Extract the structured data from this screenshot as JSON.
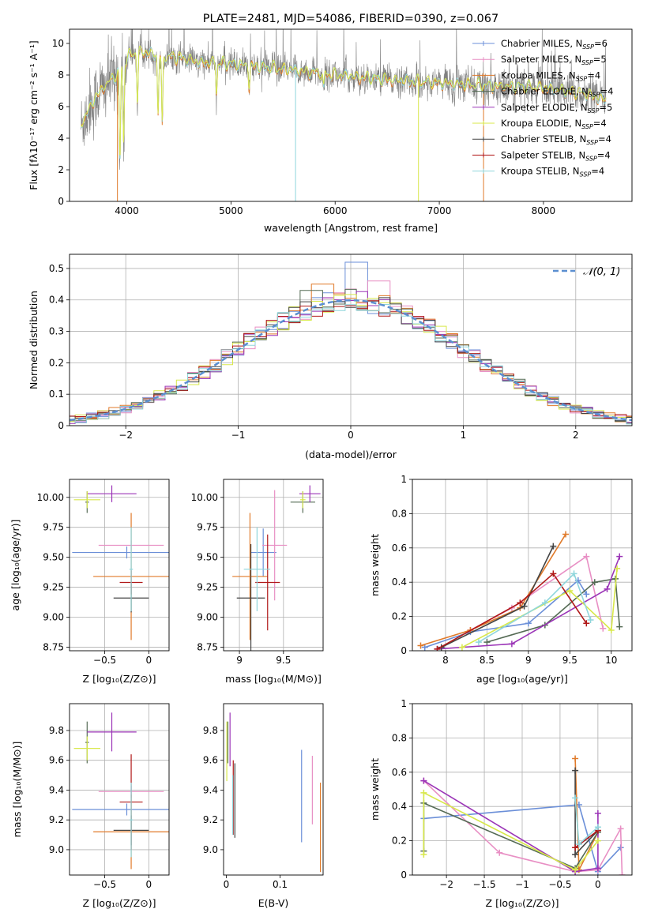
{
  "figure": {
    "title": "PLATE=2481, MJD=54086, FIBERID=0390, z=0.067"
  },
  "series_colors": [
    "#6b8fd8",
    "#e88fc4",
    "#e07a2a",
    "#556b55",
    "#9b35b7",
    "#d8e84a",
    "#444444",
    "#b01818",
    "#8fd6dc"
  ],
  "chart_data": [
    {
      "id": "spectrum",
      "type": "line",
      "title": "PLATE=2481, MJD=54086, FIBERID=0390, z=0.067",
      "xlabel": "wavelength [Angstrom, rest frame]",
      "ylabel": "Flux [fλ10⁻¹⁷ erg cm⁻² s⁻¹ A⁻¹]",
      "xlim": [
        3450,
        8850
      ],
      "ylim": [
        0,
        10.9
      ],
      "xticks": [
        4000,
        5000,
        6000,
        7000,
        8000
      ],
      "yticks": [
        0,
        2,
        4,
        6,
        8,
        10
      ],
      "data_color": "#808080",
      "data_label": "",
      "model_colors": [
        "#e07a2a",
        "#8fd6dc",
        "#d8e84a"
      ],
      "continuum": {
        "x": [
          3560,
          3620,
          3700,
          3800,
          3900,
          4000,
          4100,
          4200,
          4300,
          4500,
          4700,
          5000,
          5300,
          5600,
          6000,
          6500,
          7000,
          7500,
          8000,
          8400,
          8600
        ],
        "y": [
          4.9,
          5.6,
          6.6,
          7.4,
          8.0,
          9.1,
          9.5,
          9.4,
          9.2,
          9.1,
          8.8,
          8.7,
          8.5,
          8.3,
          8.0,
          7.7,
          7.5,
          7.3,
          7.2,
          6.8,
          6.4
        ]
      },
      "absorption": [
        [
          3934,
          2.4
        ],
        [
          3969,
          3.6
        ],
        [
          4102,
          6.2
        ],
        [
          4300,
          5.6
        ],
        [
          4340,
          4.7
        ],
        [
          4861,
          6.9
        ],
        [
          5175,
          7.2
        ],
        [
          5890,
          7.0
        ]
      ],
      "legend_location": "upper right",
      "legend": [
        {
          "label": "Chabrier MILES, N",
          "sub": "SSP",
          "suffix": "=6",
          "color": "#6b8fd8"
        },
        {
          "label": "Salpeter MILES, N",
          "sub": "SSP",
          "suffix": "=5",
          "color": "#e88fc4"
        },
        {
          "label": "Kroupa MILES, N",
          "sub": "SSP",
          "suffix": "=4",
          "color": "#e07a2a"
        },
        {
          "label": "Chabrier ELODIE, N",
          "sub": "SSP",
          "suffix": "=4",
          "color": "#556b55"
        },
        {
          "label": "Salpeter ELODIE, N",
          "sub": "SSP",
          "suffix": "=5",
          "color": "#9b35b7"
        },
        {
          "label": "Kroupa ELODIE, N",
          "sub": "SSP",
          "suffix": "=4",
          "color": "#d8e84a"
        },
        {
          "label": "Chabrier STELIB, N",
          "sub": "SSP",
          "suffix": "=4",
          "color": "#444444"
        },
        {
          "label": "Salpeter STELIB, N",
          "sub": "SSP",
          "suffix": "=4",
          "color": "#b01818"
        },
        {
          "label": "Kroupa STELIB, N",
          "sub": "SSP",
          "suffix": "=4",
          "color": "#8fd6dc"
        }
      ]
    },
    {
      "id": "residuals",
      "type": "histogram",
      "xlabel": "(data-model)/error",
      "ylabel": "Normed distribution",
      "xlim": [
        -2.5,
        2.5
      ],
      "ylim": [
        0,
        0.545
      ],
      "xticks": [
        -2,
        -1,
        0,
        1,
        2
      ],
      "yticks": [
        0.0,
        0.1,
        0.2,
        0.3,
        0.4,
        0.5
      ],
      "grid": true,
      "bin_width": 0.1,
      "gaussian_label": "𝒩(0, 1)",
      "gaussian_color": "#5b8fd0",
      "peak_values": [
        0.52,
        0.46,
        0.45,
        0.43
      ]
    },
    {
      "id": "age_vs_Z",
      "type": "errorbar",
      "xlabel": "Z [log₁₀(Z/Z⊙)]",
      "ylabel": "age  [log₁₀(age/yr)]",
      "xlim": [
        -0.9,
        0.23
      ],
      "ylim": [
        8.72,
        10.15
      ],
      "xticks": [
        -0.5,
        0.0
      ],
      "yticks": [
        8.75,
        9.0,
        9.25,
        9.5,
        9.75,
        10.0
      ],
      "yticklabels": [
        "8.75",
        "9.00",
        "9.25",
        "9.50",
        "9.75",
        "10.00"
      ],
      "grid": true,
      "points": [
        {
          "color": "#6b8fd8",
          "x": -0.25,
          "xerr": 0.62,
          "y": 9.54,
          "yerr": 0.05
        },
        {
          "color": "#e88fc4",
          "x": -0.2,
          "xerr": 0.37,
          "y": 9.6,
          "yerr": 0.04
        },
        {
          "color": "#e07a2a",
          "x": -0.2,
          "xerr": 0.43,
          "y": 9.34,
          "yerr": 0.53
        },
        {
          "color": "#556b55",
          "x": -0.7,
          "xerr": 0.02,
          "y": 9.96,
          "yerr": 0.09
        },
        {
          "color": "#9b35b7",
          "x": -0.42,
          "xerr": 0.28,
          "y": 10.03,
          "yerr": 0.07
        },
        {
          "color": "#d8e84a",
          "x": -0.7,
          "xerr": 0.15,
          "y": 9.98,
          "yerr": 0.07
        },
        {
          "color": "#444444",
          "x": -0.2,
          "xerr": 0.2,
          "y": 9.16,
          "yerr": 0.12
        },
        {
          "color": "#b01818",
          "x": -0.2,
          "xerr": 0.13,
          "y": 9.29,
          "yerr": 0.1
        },
        {
          "color": "#8fd6dc",
          "x": -0.2,
          "xerr": 0.02,
          "y": 9.4,
          "yerr": 0.35
        }
      ]
    },
    {
      "id": "age_vs_mass",
      "type": "errorbar",
      "xlabel": "mass [log₁₀(M/M⊙)]",
      "ylabel": "",
      "xlim": [
        8.82,
        9.95
      ],
      "ylim": [
        8.72,
        10.15
      ],
      "xticks": [
        9.0,
        9.5
      ],
      "yticks": [
        8.75,
        9.0,
        9.25,
        9.5,
        9.75,
        10.0
      ],
      "yticklabels": [
        "8.75",
        "9.00",
        "9.25",
        "9.50",
        "9.75",
        "10.00"
      ],
      "grid": true,
      "points": [
        {
          "color": "#6b8fd8",
          "x": 9.27,
          "xerr": 0.15,
          "y": 9.54,
          "yerr": 0.2
        },
        {
          "color": "#e88fc4",
          "x": 9.4,
          "xerr": 0.14,
          "y": 9.6,
          "yerr": 0.46
        },
        {
          "color": "#e07a2a",
          "x": 9.12,
          "xerr": 0.2,
          "y": 9.34,
          "yerr": 0.53
        },
        {
          "color": "#556b55",
          "x": 9.72,
          "xerr": 0.14,
          "y": 9.96,
          "yerr": 0.09
        },
        {
          "color": "#9b35b7",
          "x": 9.8,
          "xerr": 0.12,
          "y": 10.03,
          "yerr": 0.07
        },
        {
          "color": "#d8e84a",
          "x": 9.72,
          "xerr": 0.03,
          "y": 9.98,
          "yerr": 0.07
        },
        {
          "color": "#444444",
          "x": 9.13,
          "xerr": 0.16,
          "y": 9.16,
          "yerr": 0.45
        },
        {
          "color": "#b01818",
          "x": 9.32,
          "xerr": 0.14,
          "y": 9.29,
          "yerr": 0.4
        },
        {
          "color": "#8fd6dc",
          "x": 9.2,
          "xerr": 0.15,
          "y": 9.4,
          "yerr": 0.35
        }
      ]
    },
    {
      "id": "massweight_vs_age",
      "type": "line",
      "xlabel": "age  [log₁₀(age/yr)]",
      "ylabel": "mass weight",
      "xlim": [
        7.6,
        10.25
      ],
      "ylim": [
        0,
        1.0
      ],
      "xticks": [
        8.0,
        8.5,
        9.0,
        9.5,
        10.0
      ],
      "yticks": [
        0.0,
        0.2,
        0.4,
        0.6,
        0.8,
        1.0
      ],
      "grid": true,
      "series": [
        {
          "color": "#6b8fd8",
          "x": [
            7.75,
            8.3,
            9.0,
            9.6,
            9.7
          ],
          "y": [
            0.02,
            0.11,
            0.16,
            0.41,
            0.33
          ]
        },
        {
          "color": "#e88fc4",
          "x": [
            8.3,
            8.8,
            9.7,
            9.9
          ],
          "y": [
            0.12,
            0.25,
            0.55,
            0.13
          ]
        },
        {
          "color": "#e07a2a",
          "x": [
            7.7,
            8.3,
            8.9,
            9.45
          ],
          "y": [
            0.03,
            0.12,
            0.25,
            0.68
          ]
        },
        {
          "color": "#556b55",
          "x": [
            8.5,
            9.2,
            9.8,
            10.05,
            10.1
          ],
          "y": [
            0.05,
            0.15,
            0.4,
            0.42,
            0.14
          ]
        },
        {
          "color": "#9b35b7",
          "x": [
            7.9,
            8.8,
            9.95,
            10.1
          ],
          "y": [
            0.01,
            0.04,
            0.36,
            0.55
          ]
        },
        {
          "color": "#d8e84a",
          "x": [
            8.2,
            9.5,
            10.0,
            10.07
          ],
          "y": [
            0.02,
            0.35,
            0.12,
            0.48
          ]
        },
        {
          "color": "#444444",
          "x": [
            7.95,
            8.95,
            9.3
          ],
          "y": [
            0.02,
            0.26,
            0.61
          ]
        },
        {
          "color": "#b01818",
          "x": [
            7.9,
            8.9,
            9.3,
            9.7
          ],
          "y": [
            0.01,
            0.28,
            0.45,
            0.16
          ]
        },
        {
          "color": "#8fd6dc",
          "x": [
            8.4,
            9.2,
            9.55,
            9.75
          ],
          "y": [
            0.05,
            0.28,
            0.45,
            0.18
          ]
        }
      ]
    },
    {
      "id": "mass_vs_Z",
      "type": "errorbar",
      "xlabel": "Z [log₁₀(Z/Z⊙)]",
      "ylabel": "mass [log₁₀(M/M⊙)]",
      "xlim": [
        -0.9,
        0.23
      ],
      "ylim": [
        8.83,
        9.98
      ],
      "xticks": [
        -0.5,
        0.0
      ],
      "yticks": [
        9.0,
        9.2,
        9.4,
        9.6,
        9.8
      ],
      "yticklabels": [
        "9.0",
        "9.2",
        "9.4",
        "9.6",
        "9.8"
      ],
      "grid": true,
      "points": [
        {
          "color": "#6b8fd8",
          "x": -0.25,
          "xerr": 0.62,
          "y": 9.27,
          "yerr": 0.04
        },
        {
          "color": "#e88fc4",
          "x": -0.2,
          "xerr": 0.37,
          "y": 9.39,
          "yerr": 0.04
        },
        {
          "color": "#e07a2a",
          "x": -0.2,
          "xerr": 0.43,
          "y": 9.12,
          "yerr": 0.25
        },
        {
          "color": "#556b55",
          "x": -0.7,
          "xerr": 0.02,
          "y": 9.72,
          "yerr": 0.14
        },
        {
          "color": "#9b35b7",
          "x": -0.42,
          "xerr": 0.28,
          "y": 9.79,
          "yerr": 0.13
        },
        {
          "color": "#d8e84a",
          "x": -0.7,
          "xerr": 0.15,
          "y": 9.68,
          "yerr": 0.08
        },
        {
          "color": "#444444",
          "x": -0.2,
          "xerr": 0.2,
          "y": 9.13,
          "yerr": 0.1
        },
        {
          "color": "#b01818",
          "x": -0.2,
          "xerr": 0.13,
          "y": 9.32,
          "yerr": 0.32
        },
        {
          "color": "#8fd6dc",
          "x": -0.2,
          "xerr": 0.02,
          "y": 9.2,
          "yerr": 0.25
        }
      ]
    },
    {
      "id": "mass_vs_ebv",
      "type": "errorbar",
      "xlabel": "E(B-V)",
      "ylabel": "",
      "xlim": [
        -0.005,
        0.18
      ],
      "ylim": [
        8.83,
        9.98
      ],
      "xticks": [
        0.0,
        0.1
      ],
      "yticks": [
        9.0,
        9.2,
        9.4,
        9.6,
        9.8
      ],
      "yticklabels": [
        "9.0",
        "9.2",
        "9.4",
        "9.6",
        "9.8"
      ],
      "grid": false,
      "points": [
        {
          "color": "#6b8fd8",
          "x": 0.14,
          "xerr": 0,
          "y": 9.36,
          "yerr": 0.31
        },
        {
          "color": "#e88fc4",
          "x": 0.16,
          "xerr": 0,
          "y": 9.4,
          "yerr": 0.23
        },
        {
          "color": "#e07a2a",
          "x": 0.175,
          "xerr": 0,
          "y": 9.15,
          "yerr": 0.3
        },
        {
          "color": "#556b55",
          "x": 0.003,
          "xerr": 0,
          "y": 9.72,
          "yerr": 0.14
        },
        {
          "color": "#9b35b7",
          "x": 0.007,
          "xerr": 0,
          "y": 9.74,
          "yerr": 0.18
        },
        {
          "color": "#d8e84a",
          "x": 0.001,
          "xerr": 0,
          "y": 9.66,
          "yerr": 0.2
        },
        {
          "color": "#444444",
          "x": 0.016,
          "xerr": 0,
          "y": 9.33,
          "yerr": 0.25
        },
        {
          "color": "#b01818",
          "x": 0.013,
          "xerr": 0,
          "y": 9.35,
          "yerr": 0.25
        },
        {
          "color": "#8fd6dc",
          "x": 0.012,
          "xerr": 0,
          "y": 9.3,
          "yerr": 0.2
        }
      ]
    },
    {
      "id": "massweight_vs_Z",
      "type": "line",
      "xlabel": "Z [log₁₀(Z/Z⊙)]",
      "ylabel": "mass weight",
      "xlim": [
        -2.45,
        0.45
      ],
      "ylim": [
        0,
        1.0
      ],
      "xticks": [
        -2.0,
        -1.5,
        -1.0,
        -0.5,
        0.0
      ],
      "yticks": [
        0.0,
        0.2,
        0.4,
        0.6,
        0.8,
        1.0
      ],
      "grid": true,
      "series": [
        {
          "color": "#6b8fd8",
          "x": [
            -2.3,
            -0.25,
            0.0,
            0.3
          ],
          "y": [
            0.33,
            0.41,
            0.02,
            0.16
          ]
        },
        {
          "color": "#e88fc4",
          "x": [
            -2.3,
            -1.3,
            -0.3,
            0.0,
            0.3,
            0.32
          ],
          "y": [
            0.55,
            0.13,
            0.02,
            0.03,
            0.27,
            0.0
          ]
        },
        {
          "color": "#e07a2a",
          "x": [
            -0.3,
            -0.25,
            0.0
          ],
          "y": [
            0.68,
            0.03,
            0.25
          ]
        },
        {
          "color": "#556b55",
          "x": [
            -2.3,
            -2.3,
            -0.3,
            0.0
          ],
          "y": [
            0.14,
            0.42,
            0.04,
            0.25
          ]
        },
        {
          "color": "#9b35b7",
          "x": [
            -2.3,
            -0.3,
            0.0,
            0.0
          ],
          "y": [
            0.55,
            0.02,
            0.04,
            0.36
          ]
        },
        {
          "color": "#d8e84a",
          "x": [
            -2.3,
            -2.3,
            -0.3,
            0.0
          ],
          "y": [
            0.12,
            0.48,
            0.03,
            0.2
          ]
        },
        {
          "color": "#444444",
          "x": [
            -0.3,
            -0.3,
            0.0
          ],
          "y": [
            0.61,
            0.12,
            0.26
          ]
        },
        {
          "color": "#b01818",
          "x": [
            -0.3,
            0.0
          ],
          "y": [
            0.16,
            0.26
          ]
        },
        {
          "color": "#8fd6dc",
          "x": [
            -0.3,
            -0.25,
            0.0
          ],
          "y": [
            0.45,
            0.18,
            0.28
          ]
        }
      ]
    }
  ]
}
